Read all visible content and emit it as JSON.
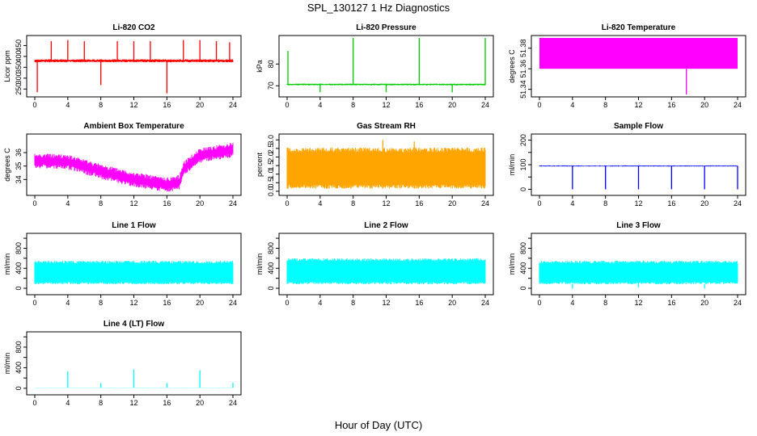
{
  "figure": {
    "title": "SPL_130127  1 Hz Diagnostics",
    "xlabel": "Hour of Day (UTC)",
    "background": "#ffffff"
  },
  "chart_data": [
    {
      "type": "line",
      "title": "Li-820 CO2",
      "ylabel": "Licor ppm",
      "color": "#ff0000",
      "xlim": [
        0,
        24
      ],
      "ylim": [
        225,
        485
      ],
      "xticks": [
        0,
        4,
        8,
        12,
        16,
        20,
        24
      ],
      "yticks": [
        250,
        300,
        350,
        400,
        450
      ],
      "ytick_labels": [
        "250",
        "300",
        "350",
        "400",
        "450"
      ],
      "style": "band",
      "baseline": 380,
      "noise": 7,
      "spikes": [
        [
          0.3,
          235
        ],
        [
          2.0,
          470
        ],
        [
          4.0,
          475
        ],
        [
          6.0,
          470
        ],
        [
          8.0,
          268
        ],
        [
          10.0,
          470
        ],
        [
          12.0,
          470
        ],
        [
          14.0,
          470
        ],
        [
          16.0,
          230
        ],
        [
          18.0,
          475
        ],
        [
          20.0,
          475
        ],
        [
          22.0,
          470
        ],
        [
          23.6,
          465
        ]
      ]
    },
    {
      "type": "line",
      "title": "Li-820 Pressure",
      "ylabel": "kPa",
      "color": "#00cc00",
      "xlim": [
        0,
        24
      ],
      "ylim": [
        66,
        92
      ],
      "xticks": [
        0,
        4,
        8,
        12,
        16,
        20,
        24
      ],
      "yticks": [
        70,
        80
      ],
      "ytick_labels": [
        "70",
        "80"
      ],
      "style": "band",
      "baseline": 70.6,
      "noise": 0.4,
      "spikes": [
        [
          0.1,
          86
        ],
        [
          4.0,
          67
        ],
        [
          8.0,
          92
        ],
        [
          12.0,
          67
        ],
        [
          16.0,
          92
        ],
        [
          20.0,
          67
        ],
        [
          24.0,
          92
        ]
      ]
    },
    {
      "type": "area",
      "title": "Li-820 Temperature",
      "ylabel": "degrees C",
      "color": "#ff00ff",
      "xlim": [
        0,
        24
      ],
      "ylim": [
        51.335,
        51.39
      ],
      "xticks": [
        0,
        4,
        8,
        12,
        16,
        20,
        24
      ],
      "yticks": [
        51.34,
        51.36,
        51.38
      ],
      "ytick_labels": [
        "51.34",
        "51.36",
        "51.38"
      ],
      "style": "block",
      "block_low": 51.36,
      "block_high": 51.39,
      "spikes": [
        [
          17.8,
          51.335
        ]
      ]
    },
    {
      "type": "line",
      "title": "Ambient Box Temperature",
      "ylabel": "degrees C",
      "color": "#ff00ff",
      "xlim": [
        0,
        24
      ],
      "ylim": [
        33,
        37.2
      ],
      "xticks": [
        0,
        4,
        8,
        12,
        16,
        20,
        24
      ],
      "yticks": [
        34,
        35,
        36
      ],
      "ytick_labels": [
        "34",
        "35",
        "36"
      ],
      "style": "trend",
      "noise": 0.55,
      "trend": [
        [
          0,
          35.4
        ],
        [
          4,
          35.3
        ],
        [
          8,
          34.6
        ],
        [
          12,
          34.0
        ],
        [
          16,
          33.6
        ],
        [
          17.5,
          33.8
        ],
        [
          18,
          34.8
        ],
        [
          20,
          35.8
        ],
        [
          24,
          36.2
        ]
      ],
      "spikes": []
    },
    {
      "type": "line",
      "title": "Gas Stream RH",
      "ylabel": "percent",
      "color": "#ffa500",
      "xlim": [
        0,
        24
      ],
      "ylim": [
        -0.1,
        3.2
      ],
      "xticks": [
        0,
        4,
        8,
        12,
        16,
        20,
        24
      ],
      "yticks": [
        0.0,
        0.5,
        1.0,
        1.5,
        2.0,
        2.5,
        3.0
      ],
      "ytick_labels": [
        "0.0",
        "0.5",
        "1.0",
        "1.5",
        "2.0",
        "2.5",
        "3.0"
      ],
      "style": "range",
      "range_low": 0.15,
      "range_high": 2.55,
      "spikes": [
        [
          11.6,
          3.0
        ],
        [
          15.4,
          2.9
        ]
      ]
    },
    {
      "type": "line",
      "title": "Sample Flow",
      "ylabel": "ml/min",
      "color": "#0000ff",
      "xlim": [
        0,
        24
      ],
      "ylim": [
        -15,
        215
      ],
      "xticks": [
        0,
        4,
        8,
        12,
        16,
        20,
        24
      ],
      "yticks": [
        0,
        50,
        100,
        150,
        200
      ],
      "ytick_labels": [
        "0",
        "",
        "100",
        "",
        "200"
      ],
      "style": "band",
      "baseline": 95,
      "noise": 2,
      "spikes": [
        [
          4.0,
          0
        ],
        [
          8.0,
          0
        ],
        [
          12.0,
          0
        ],
        [
          16.0,
          0
        ],
        [
          20.0,
          0
        ],
        [
          24.0,
          0
        ]
      ]
    },
    {
      "type": "line",
      "title": "Line 1 Flow",
      "ylabel": "ml/min",
      "color": "#00ffff",
      "xlim": [
        0,
        24
      ],
      "ylim": [
        -80,
        1050
      ],
      "xticks": [
        0,
        4,
        8,
        12,
        16,
        20,
        24
      ],
      "yticks": [
        0,
        200,
        400,
        600,
        800,
        1000
      ],
      "ytick_labels": [
        "0",
        "",
        "400",
        "",
        "800",
        ""
      ],
      "style": "range",
      "range_low": 80,
      "range_high": 550,
      "spikes": []
    },
    {
      "type": "line",
      "title": "Line 2 Flow",
      "ylabel": "ml/min",
      "color": "#00ffff",
      "xlim": [
        0,
        24
      ],
      "ylim": [
        -80,
        1050
      ],
      "xticks": [
        0,
        4,
        8,
        12,
        16,
        20,
        24
      ],
      "yticks": [
        0,
        200,
        400,
        600,
        800,
        1000
      ],
      "ytick_labels": [
        "0",
        "",
        "400",
        "",
        "800",
        ""
      ],
      "style": "range",
      "range_low": 80,
      "range_high": 600,
      "spikes": []
    },
    {
      "type": "line",
      "title": "Line 3 Flow",
      "ylabel": "ml/min",
      "color": "#00ffff",
      "xlim": [
        0,
        24
      ],
      "ylim": [
        -80,
        1050
      ],
      "xticks": [
        0,
        4,
        8,
        12,
        16,
        20,
        24
      ],
      "yticks": [
        0,
        200,
        400,
        600,
        800,
        1000
      ],
      "ytick_labels": [
        "0",
        "",
        "400",
        "",
        "800",
        ""
      ],
      "style": "range",
      "range_low": 80,
      "range_high": 550,
      "spikes": [
        [
          4.0,
          -10
        ],
        [
          12.0,
          20
        ],
        [
          20.0,
          -5
        ]
      ]
    },
    {
      "type": "line",
      "title": "Line 4 (LT) Flow",
      "ylabel": "ml/min",
      "color": "#00ffff",
      "xlim": [
        0,
        24
      ],
      "ylim": [
        -80,
        1050
      ],
      "xticks": [
        0,
        4,
        8,
        12,
        16,
        20,
        24
      ],
      "yticks": [
        0,
        200,
        400,
        600,
        800,
        1000
      ],
      "ytick_labels": [
        "0",
        "",
        "400",
        "",
        "800",
        ""
      ],
      "style": "band",
      "baseline": 10,
      "noise": 3,
      "spikes": [
        [
          4.0,
          330
        ],
        [
          8.0,
          100
        ],
        [
          12.0,
          370
        ],
        [
          16.0,
          100
        ],
        [
          20.0,
          350
        ],
        [
          24.0,
          110
        ]
      ]
    }
  ]
}
